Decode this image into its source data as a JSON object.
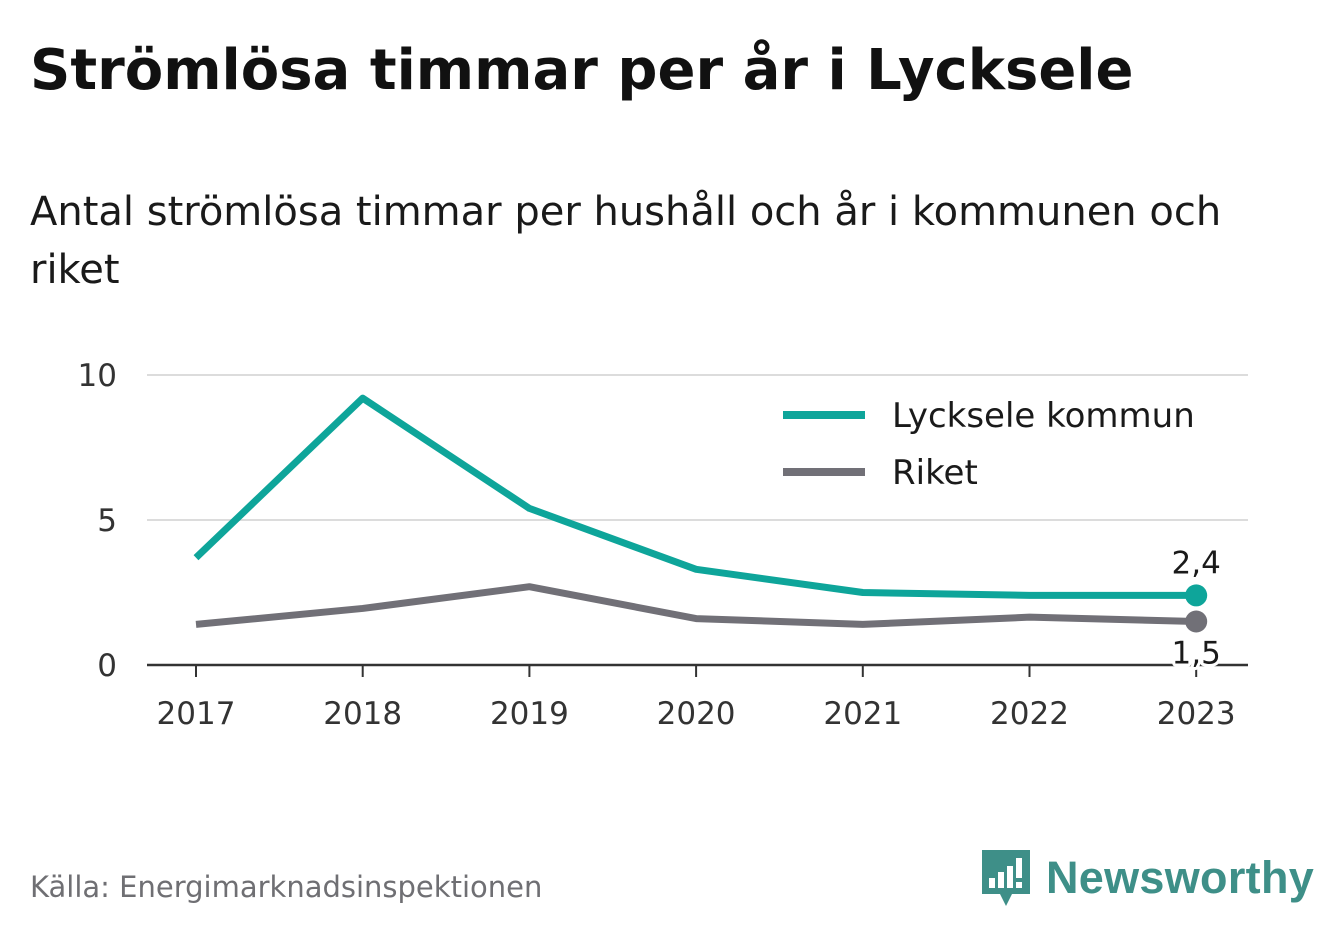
{
  "header": {
    "title": "Strömlösa timmar per år i Lycksele",
    "subtitle": "Antal strömlösa timmar per hushåll och år i kommunen och riket"
  },
  "footer": {
    "source": "Källa: Energimarknadsinspektionen",
    "brand": "Newsworthy",
    "brand_icon": "newsworthy-logo-icon"
  },
  "colors": {
    "lycksele": "#0ea59a",
    "riket": "#717077",
    "grid": "#dcdcdc",
    "axis": "#333333",
    "brand": "#3e8f88"
  },
  "chart_data": {
    "type": "line",
    "x": [
      "2017",
      "2018",
      "2019",
      "2020",
      "2021",
      "2022",
      "2023"
    ],
    "ylim": [
      0,
      10
    ],
    "yticks": [
      "0",
      "5",
      "10"
    ],
    "grid": true,
    "legend_position": "top-right",
    "series": [
      {
        "name": "Lycksele kommun",
        "values": [
          3.7,
          9.2,
          5.4,
          3.3,
          2.5,
          2.4,
          2.4
        ],
        "end_label": "2,4"
      },
      {
        "name": "Riket",
        "values": [
          1.4,
          1.95,
          2.7,
          1.6,
          1.4,
          1.65,
          1.5
        ],
        "end_label": "1,5"
      }
    ]
  }
}
